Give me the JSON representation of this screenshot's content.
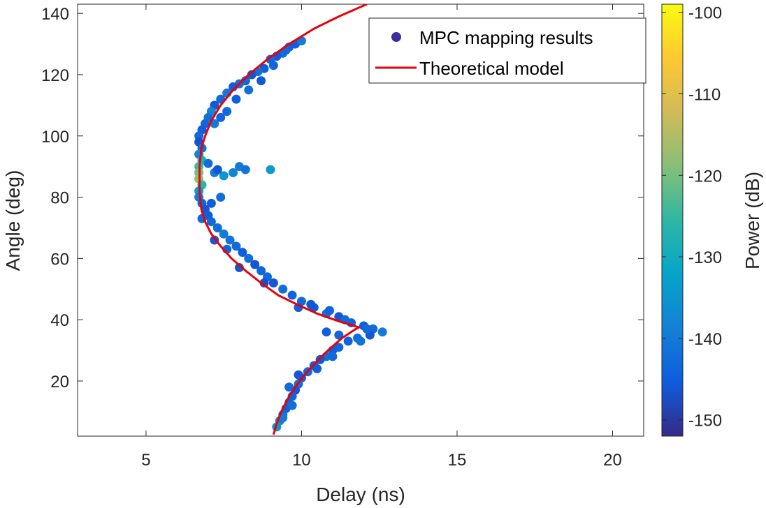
{
  "chart_data": {
    "type": "scatter",
    "xlabel": "Delay (ns)",
    "ylabel": "Angle (deg)",
    "xlim": [
      2.8,
      21
    ],
    "ylim": [
      2,
      143
    ],
    "xticks": [
      5,
      10,
      15,
      20
    ],
    "yticks": [
      20,
      40,
      60,
      80,
      100,
      120,
      140
    ],
    "grid": false,
    "legend": {
      "location": "top-right",
      "entries": [
        "MPC mapping results",
        "Theoretical model"
      ]
    },
    "colorbar": {
      "label": "Power (dB)",
      "range": [
        -152,
        -99
      ],
      "ticks": [
        -150,
        -140,
        -130,
        -120,
        -110,
        -100
      ],
      "colormap": "parula"
    },
    "series": [
      {
        "name": "MPC mapping results",
        "kind": "scatter",
        "points": [
          [
            9.8,
            130,
            -145
          ],
          [
            10.0,
            131,
            -140
          ],
          [
            9.6,
            129,
            -145
          ],
          [
            9.4,
            127,
            -142
          ],
          [
            9.2,
            126,
            -146
          ],
          [
            9.0,
            125,
            -143
          ],
          [
            8.8,
            122,
            -145
          ],
          [
            8.6,
            121,
            -141
          ],
          [
            8.4,
            120,
            -146
          ],
          [
            8.2,
            118,
            -144
          ],
          [
            8.0,
            117,
            -142
          ],
          [
            7.8,
            116,
            -145
          ],
          [
            7.6,
            114,
            -140
          ],
          [
            7.4,
            112,
            -143
          ],
          [
            7.2,
            110,
            -146
          ],
          [
            7.1,
            108,
            -138
          ],
          [
            7.0,
            106,
            -142
          ],
          [
            6.9,
            104,
            -144
          ],
          [
            6.8,
            102,
            -145
          ],
          [
            6.7,
            100,
            -143
          ],
          [
            6.7,
            98,
            -147
          ],
          [
            6.8,
            96,
            -142
          ],
          [
            6.7,
            94,
            -138
          ],
          [
            6.8,
            92,
            -128
          ],
          [
            6.7,
            90,
            -124
          ],
          [
            6.7,
            88,
            -120
          ],
          [
            6.7,
            86,
            -118
          ],
          [
            6.8,
            84,
            -126
          ],
          [
            6.7,
            82,
            -133
          ],
          [
            6.7,
            80,
            -140
          ],
          [
            6.8,
            78,
            -144
          ],
          [
            6.9,
            76,
            -146
          ],
          [
            7.0,
            74,
            -145
          ],
          [
            7.1,
            72,
            -143
          ],
          [
            7.3,
            70,
            -142
          ],
          [
            7.5,
            68,
            -140
          ],
          [
            7.7,
            66,
            -141
          ],
          [
            7.9,
            64,
            -143
          ],
          [
            8.1,
            62,
            -145
          ],
          [
            8.3,
            60,
            -142
          ],
          [
            8.5,
            58,
            -146
          ],
          [
            8.7,
            56,
            -144
          ],
          [
            8.9,
            54,
            -143
          ],
          [
            9.1,
            52,
            -146
          ],
          [
            9.4,
            50,
            -142
          ],
          [
            9.7,
            48,
            -144
          ],
          [
            10.0,
            46,
            -143
          ],
          [
            10.4,
            44,
            -145
          ],
          [
            10.8,
            42,
            -142
          ],
          [
            11.2,
            41,
            -146
          ],
          [
            11.6,
            39,
            -144
          ],
          [
            12.0,
            38,
            -145
          ],
          [
            12.3,
            37,
            -143
          ],
          [
            12.6,
            36,
            -140
          ],
          [
            12.2,
            35,
            -146
          ],
          [
            11.8,
            34,
            -142
          ],
          [
            11.5,
            33,
            -144
          ],
          [
            11.2,
            31,
            -143
          ],
          [
            11.0,
            30,
            -145
          ],
          [
            10.8,
            28,
            -142
          ],
          [
            10.6,
            27,
            -146
          ],
          [
            10.4,
            25,
            -144
          ],
          [
            10.2,
            23,
            -143
          ],
          [
            10.0,
            21,
            -145
          ],
          [
            9.9,
            19,
            -142
          ],
          [
            9.8,
            17,
            -146
          ],
          [
            9.7,
            15,
            -144
          ],
          [
            9.6,
            13,
            -143
          ],
          [
            9.5,
            11,
            -145
          ],
          [
            9.4,
            9,
            -142
          ],
          [
            9.3,
            7,
            -138
          ],
          [
            9.2,
            5,
            -135
          ],
          [
            7.0,
            91,
            -142
          ],
          [
            7.2,
            88,
            -140
          ],
          [
            7.5,
            87,
            -135
          ],
          [
            7.8,
            88,
            -138
          ],
          [
            8.0,
            90,
            -140
          ],
          [
            8.2,
            89,
            -141
          ],
          [
            9.0,
            89,
            -134
          ],
          [
            7.3,
            89,
            -146
          ],
          [
            7.2,
            104,
            -140
          ],
          [
            7.4,
            106,
            -144
          ],
          [
            7.6,
            108,
            -143
          ],
          [
            7.9,
            112,
            -145
          ],
          [
            8.3,
            115,
            -142
          ],
          [
            8.7,
            118,
            -146
          ],
          [
            9.1,
            123,
            -144
          ],
          [
            9.5,
            128,
            -143
          ],
          [
            10.3,
            45,
            -146
          ],
          [
            10.9,
            43,
            -144
          ],
          [
            11.4,
            40,
            -143
          ],
          [
            9.9,
            44,
            -145
          ],
          [
            8.8,
            52,
            -147
          ],
          [
            8.0,
            57,
            -146
          ],
          [
            7.6,
            63,
            -144
          ],
          [
            7.2,
            66,
            -146
          ],
          [
            6.8,
            73,
            -143
          ],
          [
            7.1,
            78,
            -145
          ],
          [
            7.4,
            80,
            -142
          ],
          [
            11.9,
            33,
            -141
          ],
          [
            11.0,
            28,
            -143
          ],
          [
            10.5,
            24,
            -145
          ],
          [
            9.9,
            22,
            -146
          ],
          [
            9.6,
            18,
            -143
          ],
          [
            9.7,
            12,
            -142
          ],
          [
            9.4,
            8,
            -140
          ],
          [
            10.8,
            36,
            -145
          ],
          [
            11.2,
            35,
            -144
          ],
          [
            12.1,
            37,
            -143
          ]
        ]
      },
      {
        "name": "Theoretical model",
        "kind": "line",
        "color": "#e8000b",
        "x": [
          9.1,
          9.2,
          9.35,
          9.55,
          9.8,
          10.1,
          10.45,
          10.85,
          11.3,
          11.75,
          11.85,
          11.2,
          10.5,
          9.85,
          9.25,
          8.7,
          8.2,
          7.75,
          7.4,
          7.1,
          6.9,
          6.78,
          6.72,
          6.72,
          6.78,
          6.9,
          7.1,
          7.4,
          7.8,
          8.3,
          8.9,
          9.6,
          10.4,
          11.2,
          12.1
        ],
        "y": [
          2.5,
          6,
          10,
          14,
          18,
          22,
          26,
          30,
          34,
          37,
          37.5,
          39.5,
          42,
          45,
          48,
          52,
          56,
          60,
          64,
          68,
          72,
          76,
          82,
          90,
          96,
          100,
          105,
          110,
          115,
          120,
          125,
          130,
          135,
          139,
          143
        ]
      }
    ]
  }
}
